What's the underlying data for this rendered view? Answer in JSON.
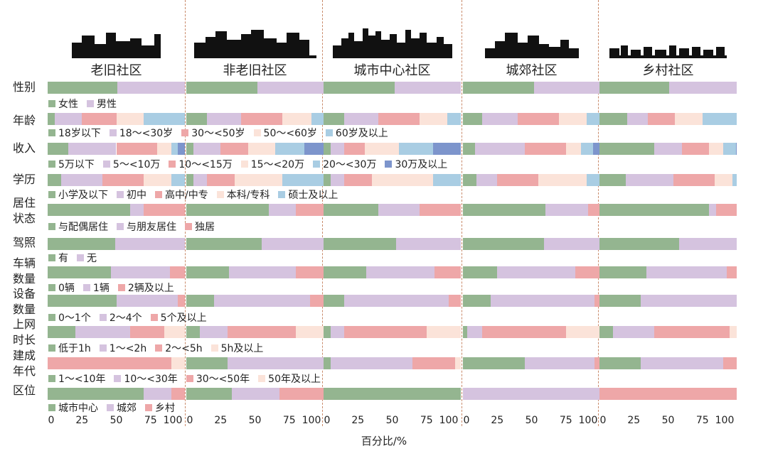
{
  "chart_data": {
    "type": "bar",
    "stacked": "horizontal-100%",
    "xlabel": "百分比/%",
    "xlim": [
      0,
      100
    ],
    "x_ticks": [
      "0",
      "25",
      "50",
      "75",
      "100"
    ],
    "panels": [
      "老旧社区",
      "非老旧社区",
      "城市中心社区",
      "城郊社区",
      "乡村社区"
    ],
    "colors": [
      "#94b590",
      "#d5c3df",
      "#eea7a8",
      "#fbe3d9",
      "#a9cde3",
      "#7d95cc"
    ],
    "rows": [
      {
        "label": [
          "性别"
        ],
        "legend": [
          "女性",
          "男性"
        ],
        "values": [
          [
            51,
            49
          ],
          [
            52,
            48
          ],
          [
            52,
            48
          ],
          [
            52,
            48
          ],
          [
            51,
            49
          ]
        ]
      },
      {
        "label": [
          "年龄"
        ],
        "legend": [
          "18岁以下",
          "18～<30岁",
          "30～<50岁",
          "50～<60岁",
          "60岁及以上"
        ],
        "values": [
          [
            5,
            20,
            25,
            20,
            30
          ],
          [
            15,
            25,
            30,
            21,
            9
          ],
          [
            15,
            25,
            30,
            20,
            10
          ],
          [
            14,
            26,
            30,
            20,
            10
          ],
          [
            20,
            15,
            20,
            20,
            25
          ]
        ]
      },
      {
        "label": [
          "收入"
        ],
        "legend": [
          "5万以下",
          "5～<10万",
          "10～<15万",
          "15～<20万",
          "20～<30万",
          "30万及以上"
        ],
        "values": [
          [
            15,
            35,
            30,
            10,
            5,
            5
          ],
          [
            5,
            20,
            20,
            20,
            21,
            14
          ],
          [
            5,
            10,
            15,
            25,
            25,
            20
          ],
          [
            9,
            36,
            30,
            11,
            9,
            5
          ],
          [
            40,
            20,
            20,
            10,
            9.5,
            0.5
          ]
        ]
      },
      {
        "label": [
          "学历"
        ],
        "legend": [
          "小学及以下",
          "初中",
          "高中/中专",
          "本科/专科",
          "硕士及以上"
        ],
        "values": [
          [
            10,
            30,
            30,
            20,
            10
          ],
          [
            5,
            10,
            20,
            35,
            30
          ],
          [
            5,
            10,
            20,
            45,
            20
          ],
          [
            10,
            15,
            30,
            35,
            10
          ],
          [
            19,
            35,
            30,
            13,
            3
          ]
        ]
      },
      {
        "label": [
          "居住",
          "状态"
        ],
        "legend": [
          "与配偶居住",
          "与朋友居住",
          "独居"
        ],
        "values": [
          [
            60,
            10,
            30
          ],
          [
            60,
            20,
            20
          ],
          [
            40,
            30,
            30
          ],
          [
            60,
            31,
            9
          ],
          [
            80,
            5,
            15
          ]
        ]
      },
      {
        "label": [
          "驾照"
        ],
        "legend": [
          "有",
          "无"
        ],
        "values": [
          [
            49,
            51
          ],
          [
            55,
            45
          ],
          [
            53,
            47
          ],
          [
            59,
            41
          ],
          [
            58,
            42
          ]
        ]
      },
      {
        "label": [
          "车辆",
          "数量"
        ],
        "legend": [
          "0辆",
          "1辆",
          "2辆及以上"
        ],
        "values": [
          [
            46,
            43,
            11
          ],
          [
            31,
            49,
            20
          ],
          [
            31,
            50,
            19
          ],
          [
            25,
            57,
            18
          ],
          [
            34,
            59,
            7
          ]
        ]
      },
      {
        "label": [
          "设备",
          "数量"
        ],
        "legend": [
          "0～1个",
          "2～4个",
          "5个及以上"
        ],
        "values": [
          [
            50,
            45,
            5
          ],
          [
            20,
            70,
            10
          ],
          [
            15,
            76,
            9
          ],
          [
            20,
            76,
            4
          ],
          [
            30,
            70,
            0
          ]
        ]
      },
      {
        "label": [
          "上网",
          "时长"
        ],
        "legend": [
          "低于1h",
          "1～<2h",
          "2～<5h",
          "5h及以上"
        ],
        "values": [
          [
            20,
            40,
            25,
            15
          ],
          [
            10,
            20,
            50,
            20
          ],
          [
            5,
            10,
            60,
            25
          ],
          [
            3,
            11,
            61,
            25
          ],
          [
            10,
            30,
            55,
            5
          ]
        ]
      },
      {
        "label": [
          "建成",
          "年代"
        ],
        "legend": [
          "1～<10年",
          "10～<30年",
          "30～<50年",
          "50年及以上"
        ],
        "values": [
          [
            0,
            0,
            90,
            10
          ],
          [
            30,
            70,
            0,
            0
          ],
          [
            5,
            60,
            31,
            4
          ],
          [
            45,
            51,
            4,
            0
          ],
          [
            30,
            60,
            10,
            0
          ]
        ]
      },
      {
        "label": [
          "区位"
        ],
        "legend": [
          "城市中心",
          "城郊",
          "乡村"
        ],
        "values": [
          [
            70,
            20,
            10
          ],
          [
            33,
            35,
            32
          ],
          [
            100,
            0,
            0
          ],
          [
            0,
            100,
            0
          ],
          [
            0,
            0,
            100
          ]
        ]
      }
    ]
  }
}
